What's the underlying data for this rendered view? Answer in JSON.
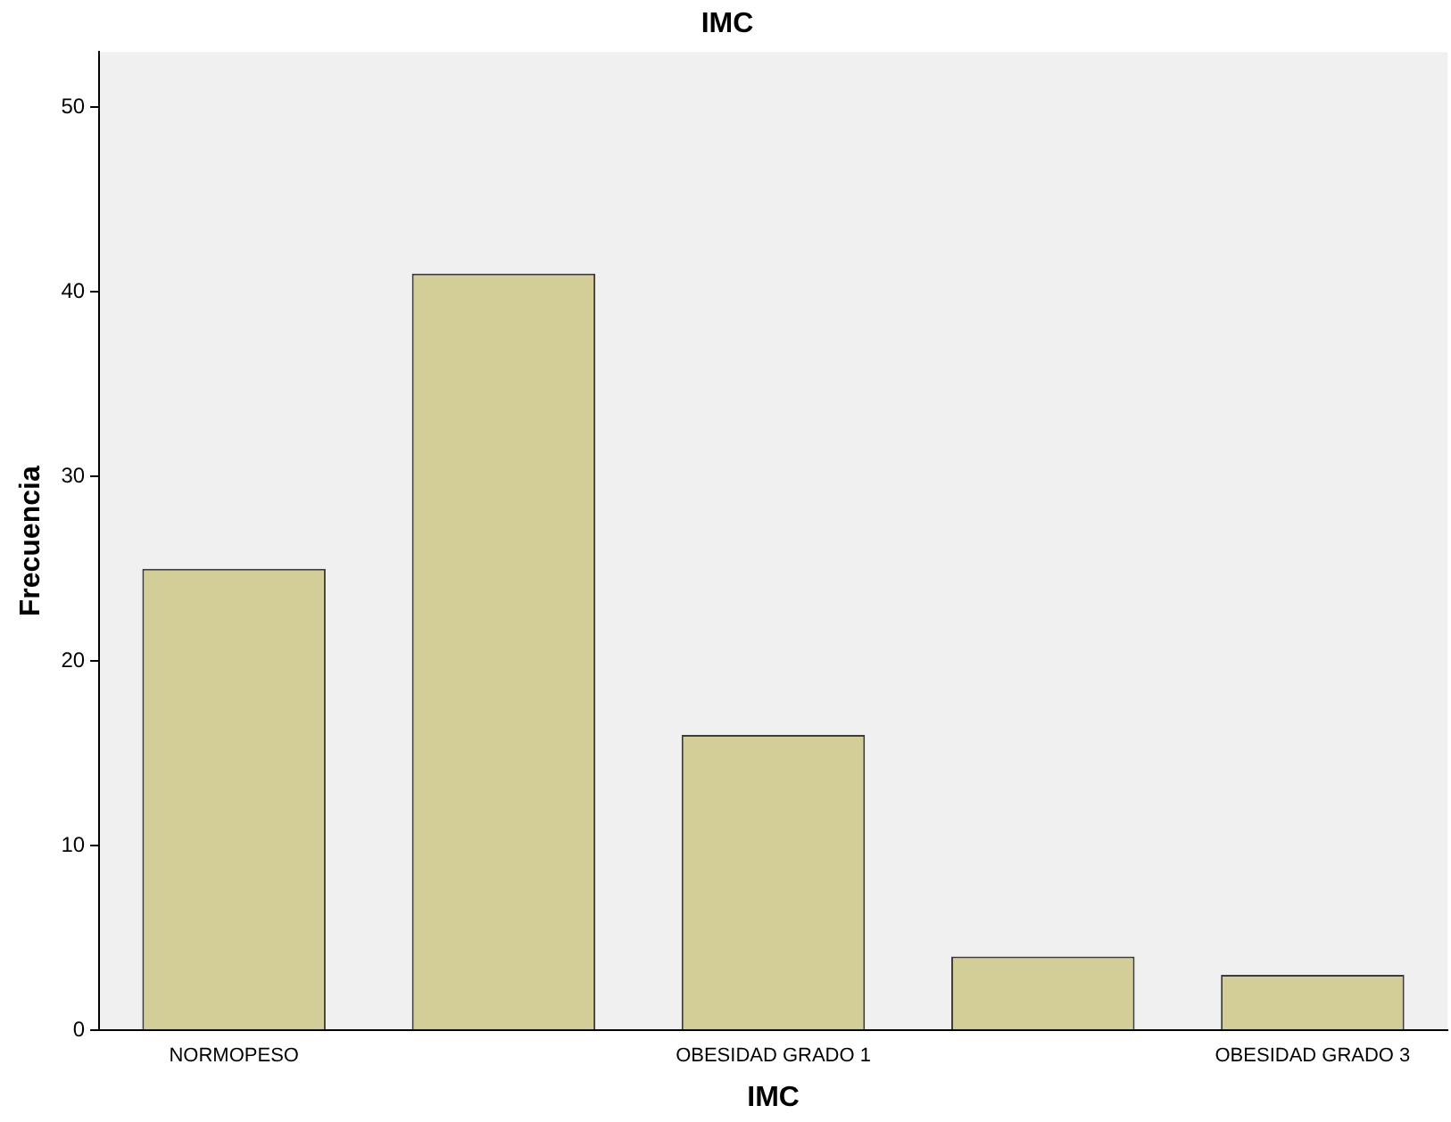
{
  "chart_data": {
    "type": "bar",
    "title": "IMC",
    "xlabel": "IMC",
    "ylabel": "Frecuencia",
    "categories": [
      "NORMOPESO",
      null,
      "OBESIDAD GRADO 1",
      null,
      "OBESIDAD GRADO 3"
    ],
    "values": [
      25,
      41,
      16,
      4,
      3
    ],
    "color": "#d3ce97",
    "ylim": [
      0,
      53
    ],
    "yticks": [
      0,
      10,
      20,
      30,
      40,
      50
    ],
    "grid": false,
    "legend": false
  }
}
